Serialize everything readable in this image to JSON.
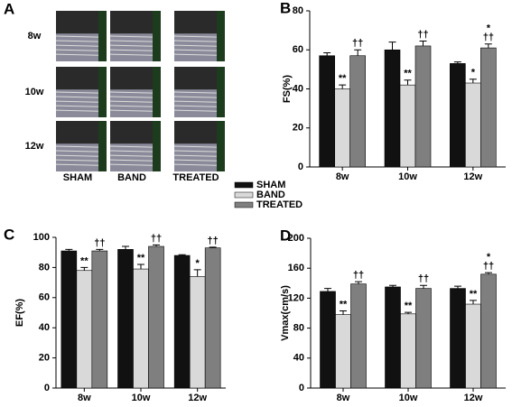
{
  "image_panel": {
    "label": "A",
    "rows": [
      "8w",
      "10w",
      "12w"
    ],
    "columns": [
      "SHAM",
      "BAND",
      "TREATED"
    ]
  },
  "legend": {
    "series": [
      {
        "name": "SHAM",
        "color": "#111111"
      },
      {
        "name": "BAND",
        "color": "#d9d9d9"
      },
      {
        "name": "TREATED",
        "color": "#7f7f7f"
      }
    ]
  },
  "chart_data": [
    {
      "type": "bar",
      "label": "B",
      "y_label": "FS(%)",
      "categories": [
        "8w",
        "10w",
        "12w"
      ],
      "ylim": [
        0,
        80
      ],
      "yticks": [
        0,
        20,
        40,
        60,
        80
      ],
      "series": [
        {
          "values": [
            57,
            60,
            53
          ],
          "errors": [
            1.5,
            4,
            0.8
          ],
          "markers": [
            [],
            [],
            []
          ]
        },
        {
          "values": [
            40,
            42,
            43
          ],
          "errors": [
            2,
            2.5,
            2
          ],
          "markers": [
            [
              "**"
            ],
            [
              "**"
            ],
            [
              "*"
            ]
          ]
        },
        {
          "values": [
            57,
            62,
            61
          ],
          "errors": [
            3,
            2.5,
            2
          ],
          "markers": [
            [
              "††"
            ],
            [
              "††"
            ],
            [
              "*",
              "††"
            ]
          ]
        }
      ]
    },
    {
      "type": "bar",
      "label": "C",
      "y_label": "EF(%)",
      "categories": [
        "8w",
        "10w",
        "12w"
      ],
      "ylim": [
        0,
        100
      ],
      "yticks": [
        0,
        20,
        40,
        60,
        80,
        100
      ],
      "series": [
        {
          "values": [
            91,
            92,
            88
          ],
          "errors": [
            1,
            2,
            0.5
          ],
          "markers": [
            [],
            [],
            []
          ]
        },
        {
          "values": [
            78,
            79,
            74
          ],
          "errors": [
            2,
            3,
            4.5
          ],
          "markers": [
            [
              "**"
            ],
            [
              "**"
            ],
            [
              "*"
            ]
          ]
        },
        {
          "values": [
            91,
            94,
            93
          ],
          "errors": [
            1,
            1,
            0.5
          ],
          "markers": [
            [
              "††"
            ],
            [
              "††"
            ],
            [
              "††"
            ]
          ]
        }
      ]
    },
    {
      "type": "bar",
      "label": "D",
      "y_label": "Vmax(cm/s)",
      "categories": [
        "8w",
        "10w",
        "12w"
      ],
      "ylim": [
        0,
        200
      ],
      "yticks": [
        0,
        40,
        80,
        120,
        160,
        200
      ],
      "series": [
        {
          "values": [
            129,
            135,
            133
          ],
          "errors": [
            4,
            2,
            3
          ],
          "markers": [
            [],
            [],
            []
          ]
        },
        {
          "values": [
            98,
            99,
            112
          ],
          "errors": [
            5,
            2,
            5
          ],
          "markers": [
            [
              "**"
            ],
            [
              "**"
            ],
            [
              "**"
            ]
          ]
        },
        {
          "values": [
            139,
            133,
            152
          ],
          "errors": [
            3,
            4,
            2
          ],
          "markers": [
            [
              "††"
            ],
            [
              "††"
            ],
            [
              "*",
              "††"
            ]
          ]
        }
      ]
    }
  ]
}
